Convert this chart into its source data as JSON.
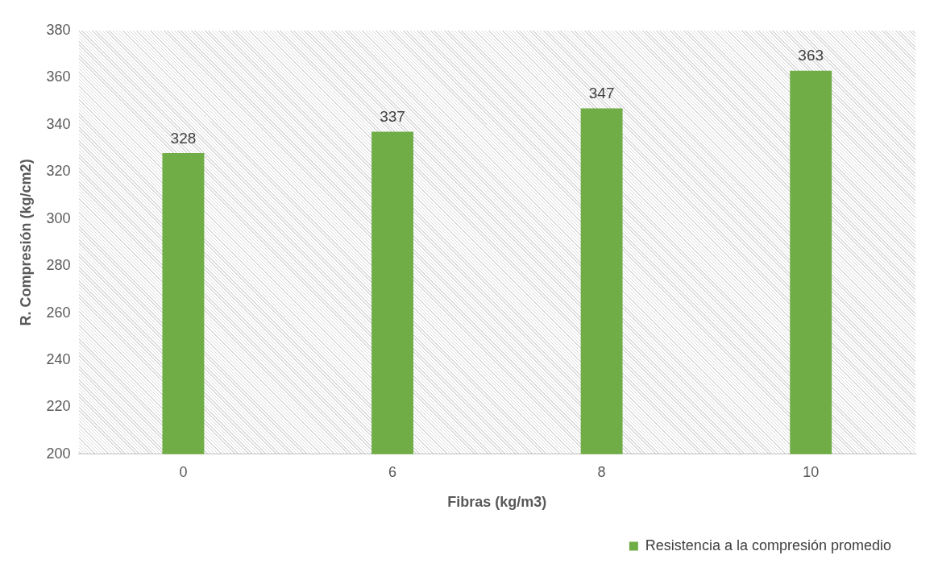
{
  "chart_data": {
    "type": "bar",
    "xlabel": "Fibras (kg/m3)",
    "ylabel": "R. Compresión (kg/cm2)",
    "categories": [
      "0",
      "6",
      "8",
      "10"
    ],
    "series": [
      {
        "name": "Resistencia a la compresión promedio",
        "color": "#70ad47",
        "values": [
          328,
          337,
          347,
          363
        ]
      }
    ],
    "ylim": [
      200,
      380
    ],
    "yticks": [
      200,
      220,
      240,
      260,
      280,
      300,
      320,
      340,
      360,
      380
    ],
    "grid": false,
    "legend": "bottom right",
    "data_labels": true
  }
}
